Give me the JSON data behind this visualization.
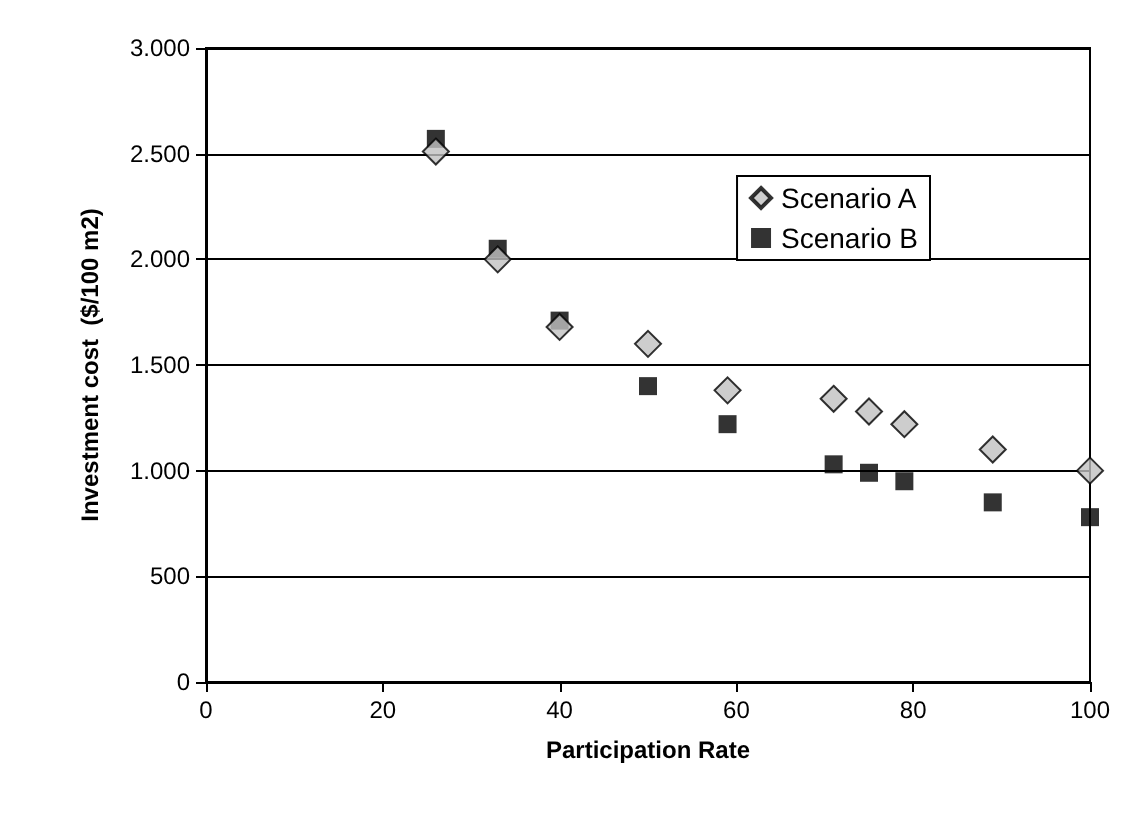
{
  "chart_data": {
    "type": "scatter",
    "xlabel": "Participation Rate",
    "ylabel": "Investment cost  ($/100 m2)",
    "x": [
      26,
      33,
      40,
      50,
      59,
      71,
      75,
      79,
      89,
      100
    ],
    "series": [
      {
        "name": "Scenario A",
        "color": "#c0c0c0",
        "marker": "diamond",
        "values": [
          2510,
          2000,
          1680,
          1600,
          1380,
          1340,
          1280,
          1220,
          1100,
          1000
        ]
      },
      {
        "name": "Scenario B",
        "color": "#000000",
        "marker": "square",
        "values": [
          2570,
          2050,
          1710,
          1400,
          1220,
          1030,
          990,
          950,
          850,
          780
        ]
      }
    ],
    "xlim": [
      0,
      100
    ],
    "xticks": [
      0,
      20,
      40,
      60,
      80,
      100
    ],
    "ylim": [
      0,
      3000
    ],
    "yticks": [
      {
        "value": 0,
        "label": "0"
      },
      {
        "value": 500,
        "label": "500"
      },
      {
        "value": 1000,
        "label": "1.000"
      },
      {
        "value": 1500,
        "label": "1.500"
      },
      {
        "value": 2000,
        "label": "2.000"
      },
      {
        "value": 2500,
        "label": "2.500"
      },
      {
        "value": 3000,
        "label": "3.000"
      }
    ],
    "grid": "y",
    "legend": "top right"
  }
}
